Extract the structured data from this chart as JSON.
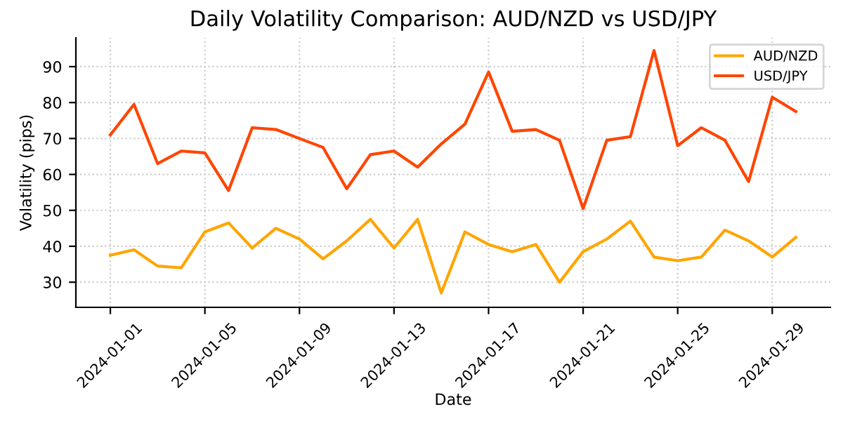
{
  "chart_data": {
    "type": "line",
    "title": "Daily Volatility Comparison: AUD/NZD vs USD/JPY",
    "xlabel": "Date",
    "ylabel": "Volatility (pips)",
    "x": [
      "2024-01-01",
      "2024-01-02",
      "2024-01-03",
      "2024-01-04",
      "2024-01-05",
      "2024-01-06",
      "2024-01-07",
      "2024-01-08",
      "2024-01-09",
      "2024-01-10",
      "2024-01-11",
      "2024-01-12",
      "2024-01-13",
      "2024-01-14",
      "2024-01-15",
      "2024-01-16",
      "2024-01-17",
      "2024-01-18",
      "2024-01-19",
      "2024-01-20",
      "2024-01-21",
      "2024-01-22",
      "2024-01-23",
      "2024-01-24",
      "2024-01-25",
      "2024-01-26",
      "2024-01-27",
      "2024-01-28",
      "2024-01-29",
      "2024-01-30"
    ],
    "series": [
      {
        "name": "AUD/NZD",
        "color": "#ffa500",
        "values": [
          37.5,
          39,
          34.5,
          34,
          44,
          46.5,
          39.5,
          45,
          42,
          36.5,
          41.5,
          47.5,
          39.5,
          47.5,
          27,
          44,
          40.5,
          38.5,
          40.5,
          30,
          38.5,
          42,
          47,
          37,
          36,
          37,
          44.5,
          41.5,
          37,
          42.5
        ]
      },
      {
        "name": "USD/JPY",
        "color": "#ff4500",
        "values": [
          71,
          79.5,
          63,
          66.5,
          66,
          55.5,
          73,
          72.5,
          70,
          67.5,
          56,
          65.5,
          66.5,
          62,
          68.5,
          74,
          88.5,
          72,
          72.5,
          69.5,
          50.5,
          69.5,
          70.5,
          94.5,
          68,
          73,
          69.5,
          58,
          81.5,
          77.5
        ]
      }
    ],
    "xlim": [
      "2023-12-30T13:00",
      "2024-01-31T11:00"
    ],
    "xticks": [
      "2024-01-01",
      "2024-01-05",
      "2024-01-09",
      "2024-01-13",
      "2024-01-17",
      "2024-01-21",
      "2024-01-25",
      "2024-01-29"
    ],
    "ylim": [
      23,
      98
    ],
    "yticks": [
      30,
      40,
      50,
      60,
      70,
      80,
      90
    ],
    "grid": true,
    "legend": "top right",
    "line_style": "solid",
    "marker": "none"
  }
}
